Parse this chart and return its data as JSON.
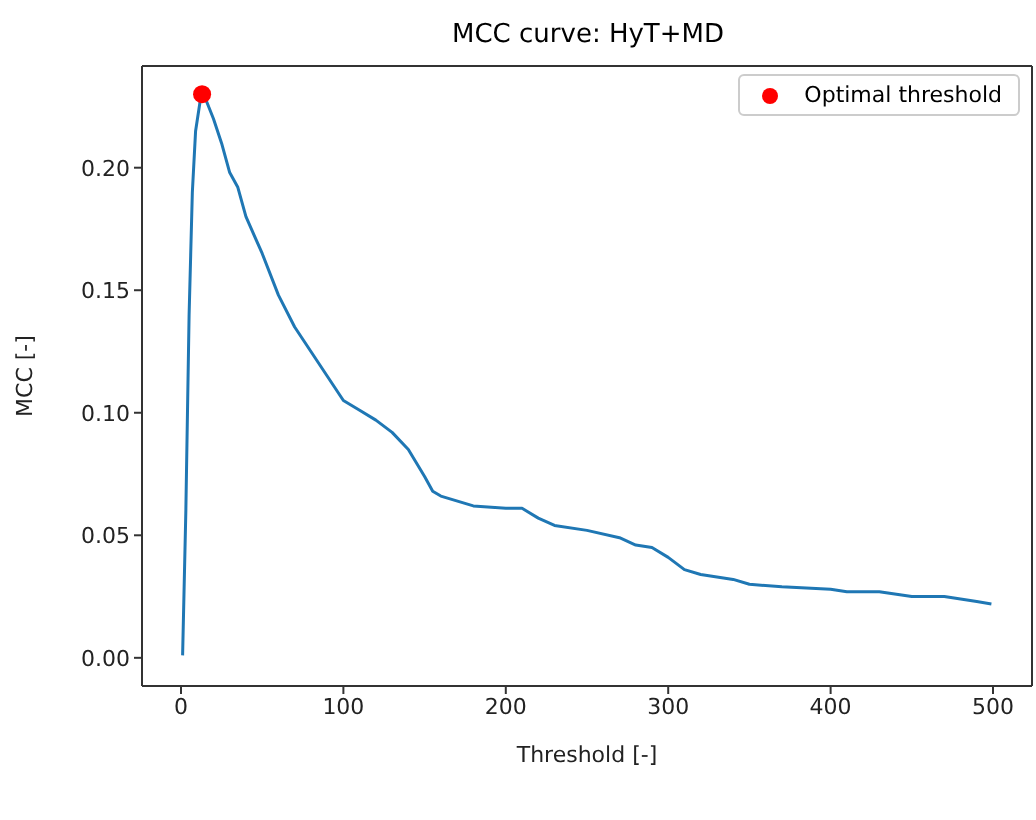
{
  "chart_data": {
    "type": "line",
    "title": "MCC curve: HyT+MD",
    "xlabel": "Threshold [-]",
    "ylabel": "MCC [-]",
    "xlim": [
      -24,
      524
    ],
    "xticks": [
      0,
      100,
      200,
      300,
      400,
      500
    ],
    "ylim": [
      -0.0115,
      0.2415
    ],
    "yticks": [
      {
        "value": 0,
        "label": "0.00"
      },
      {
        "value": 0.05,
        "label": "0.05"
      },
      {
        "value": 0.1,
        "label": "0.10"
      },
      {
        "value": 0.15,
        "label": "0.15"
      },
      {
        "value": 0.2,
        "label": "0.20"
      }
    ],
    "legend": "top right",
    "line_style": "solid",
    "series": [
      {
        "color": "#1f77b4",
        "x": [
          1,
          3,
          5,
          7,
          9,
          12,
          14,
          20,
          25,
          30,
          35,
          40,
          50,
          60,
          70,
          80,
          90,
          100,
          110,
          120,
          130,
          140,
          150,
          155,
          160,
          180,
          200,
          210,
          220,
          230,
          250,
          270,
          280,
          290,
          300,
          310,
          320,
          340,
          350,
          370,
          400,
          410,
          430,
          450,
          470,
          480,
          490,
          499
        ],
        "values": [
          0.001,
          0.06,
          0.14,
          0.19,
          0.215,
          0.228,
          0.23,
          0.22,
          0.21,
          0.198,
          0.192,
          0.18,
          0.165,
          0.148,
          0.135,
          0.125,
          0.115,
          0.105,
          0.101,
          0.097,
          0.092,
          0.085,
          0.074,
          0.068,
          0.066,
          0.062,
          0.061,
          0.061,
          0.057,
          0.054,
          0.052,
          0.049,
          0.046,
          0.045,
          0.041,
          0.036,
          0.034,
          0.032,
          0.03,
          0.029,
          0.028,
          0.027,
          0.027,
          0.025,
          0.025,
          0.024,
          0.023,
          0.022
        ]
      },
      {
        "type": "scatter",
        "name": "Optimal threshold",
        "color": "#ff0000",
        "marker": "circle",
        "x": [
          13
        ],
        "values": [
          0.23
        ]
      }
    ]
  }
}
